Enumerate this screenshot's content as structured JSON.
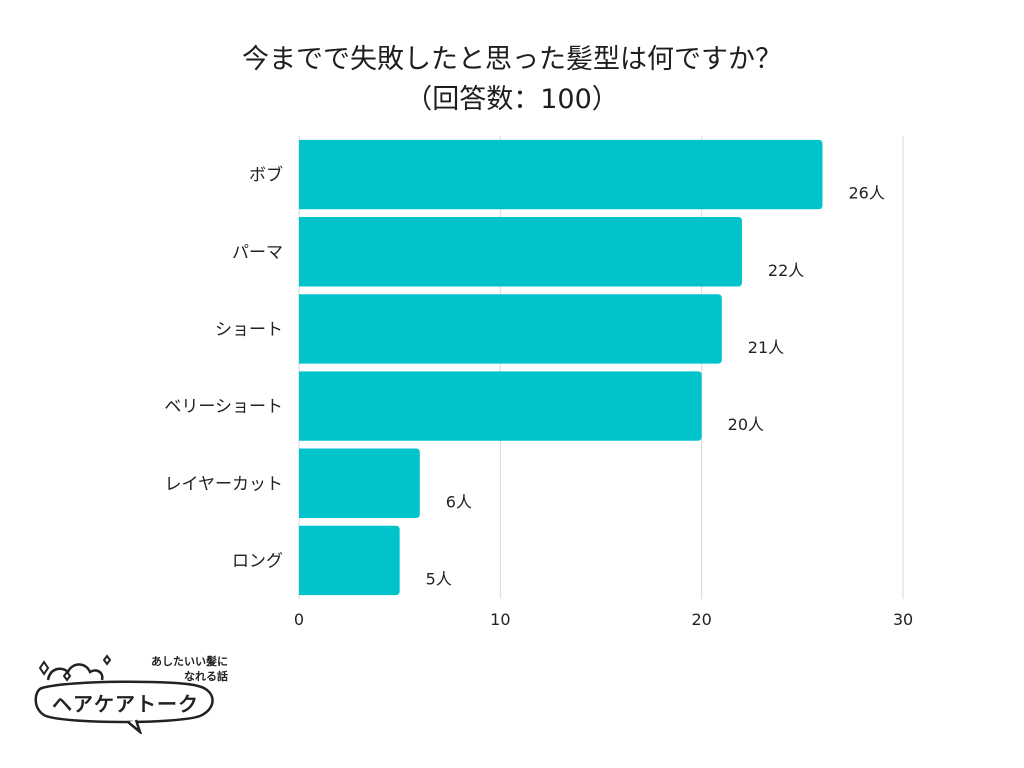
{
  "chart_data": {
    "type": "bar",
    "orientation": "horizontal",
    "title": "今までで失敗したと思った髪型は何ですか？",
    "subtitle": "（回答数：100）",
    "categories": [
      "ボブ",
      "パーマ",
      "ショート",
      "ベリーショート",
      "レイヤーカット",
      "ロング"
    ],
    "values": [
      26,
      22,
      21,
      20,
      6,
      5
    ],
    "value_labels": [
      "26人",
      "22人",
      "21人",
      "20人",
      "6人",
      "5人"
    ],
    "xlim": [
      0,
      30
    ],
    "xticks": [
      0,
      10,
      20,
      30
    ],
    "grid": true,
    "bar_color": "#00c3cb",
    "grid_color": "#d9d9d9"
  },
  "logo": {
    "tagline_line1": "あしたいい髪に",
    "tagline_line2": "なれる話",
    "name": "ヘアケアトーク"
  }
}
